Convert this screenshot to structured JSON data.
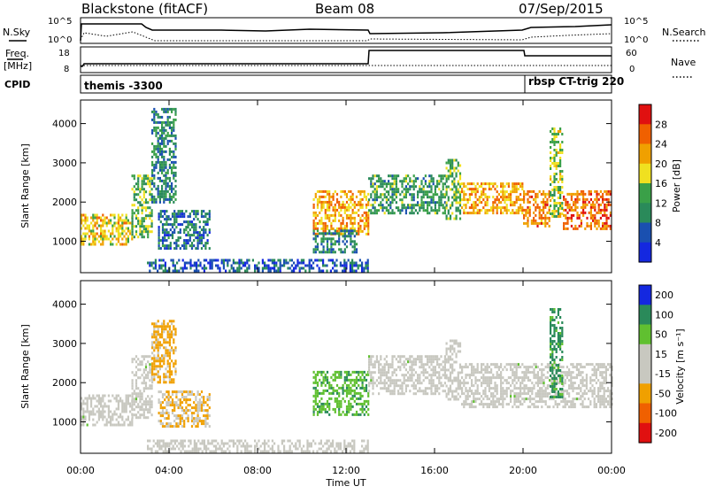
{
  "header": {
    "station": "Blackstone (fitACF)",
    "beam": "Beam 08",
    "date": "07/Sep/2015"
  },
  "params_panel": {
    "nsky_label": "N.Sky",
    "nsearch_label": "N.Search",
    "freq_label_1": "Freq.",
    "freq_label_2": "[MHz]",
    "nave_label": "Nave",
    "cpid_label": "CPID",
    "left_top_tick": "10^5",
    "left_bottom_tick": "10^0",
    "right_top_tick": "10^5",
    "right_bottom_tick": "10^0",
    "freq_top_tick": "18",
    "freq_bottom_tick": "8",
    "nave_top_tick": "60",
    "nave_bottom_tick": "0",
    "cpid_1": "themis -3300",
    "cpid_2": "rbsp CT-trig 220"
  },
  "colors": {
    "power_scale": [
      "#1428e0",
      "#1a50b0",
      "#2a8a5a",
      "#3aa048",
      "#f0e020",
      "#f0a000",
      "#f06000",
      "#e01010"
    ],
    "velocity_scale": [
      "#e01010",
      "#f06000",
      "#f0a000",
      "#c8c8c0",
      "#c8c8c0",
      "#60c030",
      "#2a8a5a",
      "#1428e0"
    ],
    "ground_scatter": "#c8c8c0"
  },
  "chart_data": [
    {
      "type": "heatmap",
      "title": "Power",
      "ylabel": "Slant Range [km]",
      "xlabel": "",
      "yticks": [
        "1000",
        "2000",
        "3000",
        "4000"
      ],
      "ylim": [
        200,
        4600
      ],
      "xlim": [
        0,
        24
      ],
      "colorbar": {
        "label": "Power [dB]",
        "ticks": [
          "4",
          "8",
          "12",
          "16",
          "20",
          "24",
          "28"
        ],
        "range": [
          0,
          32
        ]
      },
      "echo_bands": [
        {
          "t0": 0.0,
          "t1": 2.3,
          "r0": 950,
          "r1": 1700,
          "level": 20
        },
        {
          "t0": 2.3,
          "t1": 3.2,
          "r0": 1100,
          "r1": 2700,
          "level": 14
        },
        {
          "t0": 3.2,
          "t1": 4.3,
          "r0": 2000,
          "r1": 4400,
          "level": 10
        },
        {
          "t0": 3.5,
          "t1": 5.8,
          "r0": 800,
          "r1": 1800,
          "level": 8
        },
        {
          "t0": 10.5,
          "t1": 13.0,
          "r0": 1200,
          "r1": 2300,
          "level": 22
        },
        {
          "t0": 10.5,
          "t1": 12.5,
          "r0": 700,
          "r1": 1300,
          "level": 9
        },
        {
          "t0": 13.0,
          "t1": 16.5,
          "r0": 1700,
          "r1": 2700,
          "level": 12
        },
        {
          "t0": 16.5,
          "t1": 17.2,
          "r0": 1600,
          "r1": 3100,
          "level": 14
        },
        {
          "t0": 17.2,
          "t1": 20.0,
          "r0": 1700,
          "r1": 2500,
          "level": 22
        },
        {
          "t0": 20.0,
          "t1": 21.2,
          "r0": 1400,
          "r1": 2300,
          "level": 24
        },
        {
          "t0": 21.2,
          "t1": 21.8,
          "r0": 1600,
          "r1": 3900,
          "level": 16
        },
        {
          "t0": 21.8,
          "t1": 24.0,
          "r0": 1300,
          "r1": 2300,
          "level": 26
        },
        {
          "t0": 3.0,
          "t1": 13.0,
          "r0": 250,
          "r1": 550,
          "level": 6
        }
      ]
    },
    {
      "type": "heatmap",
      "title": "Velocity",
      "ylabel": "Slant Range [km]",
      "xlabel": "Time UT",
      "xticks": [
        "00:00",
        "04:00",
        "08:00",
        "12:00",
        "16:00",
        "20:00",
        "00:00"
      ],
      "yticks": [
        "1000",
        "2000",
        "3000",
        "4000"
      ],
      "ylim": [
        200,
        4600
      ],
      "xlim": [
        0,
        24
      ],
      "colorbar": {
        "label": "Velocity [m s⁻¹]",
        "ticks": [
          "200",
          "100",
          "50",
          "15",
          "-15",
          "-50",
          "-100",
          "-200"
        ],
        "range": [
          -250,
          250
        ]
      },
      "echo_bands": [
        {
          "t0": 0.0,
          "t1": 2.3,
          "r0": 950,
          "r1": 1700,
          "level": 0
        },
        {
          "t0": 2.3,
          "t1": 3.2,
          "r0": 1100,
          "r1": 2700,
          "level": 0
        },
        {
          "t0": 3.2,
          "t1": 4.3,
          "r0": 2000,
          "r1": 3600,
          "level": -60
        },
        {
          "t0": 3.5,
          "t1": 5.8,
          "r0": 900,
          "r1": 1800,
          "level": -50
        },
        {
          "t0": 10.5,
          "t1": 13.0,
          "r0": 1200,
          "r1": 2300,
          "level": 40
        },
        {
          "t0": 13.0,
          "t1": 16.5,
          "r0": 1700,
          "r1": 2700,
          "level": 0
        },
        {
          "t0": 16.5,
          "t1": 17.2,
          "r0": 1600,
          "r1": 3100,
          "level": 0
        },
        {
          "t0": 17.2,
          "t1": 24.0,
          "r0": 1400,
          "r1": 2500,
          "level": 0
        },
        {
          "t0": 21.2,
          "t1": 21.8,
          "r0": 1600,
          "r1": 3900,
          "level": 60
        },
        {
          "t0": 3.0,
          "t1": 13.0,
          "r0": 250,
          "r1": 550,
          "level": -20
        }
      ]
    }
  ]
}
